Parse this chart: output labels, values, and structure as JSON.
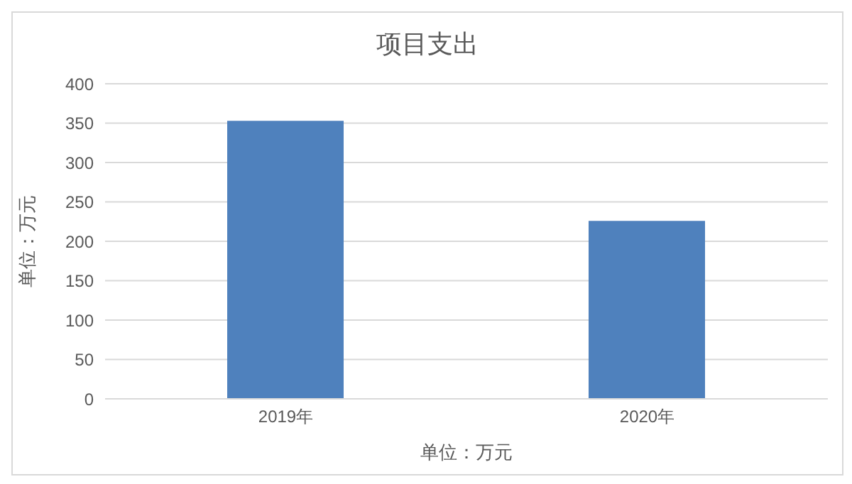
{
  "chart_data": {
    "type": "bar",
    "title": "项目支出",
    "xlabel": "单位：万元",
    "ylabel": "单位：万元",
    "categories": [
      "2019年",
      "2020年"
    ],
    "values": [
      353,
      226
    ],
    "color": "#4f81bd",
    "ylim": [
      0,
      400
    ],
    "yticks": [
      0,
      50,
      100,
      150,
      200,
      250,
      300,
      350,
      400
    ],
    "grid": "y"
  }
}
